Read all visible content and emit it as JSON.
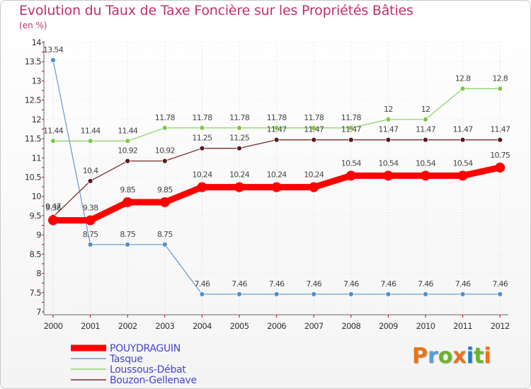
{
  "header": {
    "title": "Evolution du Taux de Taxe Foncière sur les Propriétés Bâties",
    "unit": "(en %)"
  },
  "logo": {
    "letters": [
      "P",
      "r",
      "o",
      "x",
      "i",
      "t",
      "i"
    ],
    "colors": [
      "#e8731b",
      "#5b9bd5",
      "#6ab42d",
      "#e8731b",
      "#1b7fc4",
      "#6ab42d",
      "#e8731b"
    ]
  },
  "chart_data": {
    "type": "line",
    "title": "Evolution du Taux de Taxe Foncière sur les Propriétés Bâties",
    "ylabel": "(en %)",
    "xlabel": "",
    "x": [
      "2000",
      "2001",
      "2002",
      "2003",
      "2004",
      "2005",
      "2006",
      "2007",
      "2008",
      "2009",
      "2010",
      "2011",
      "2012"
    ],
    "ylim": [
      7,
      14
    ],
    "yticks": [
      "7",
      "7.5",
      "8",
      "8.5",
      "9",
      "9.5",
      "10",
      "10.5",
      "11",
      "11.5",
      "12",
      "12.5",
      "13",
      "13.5",
      "14"
    ],
    "legend_position": "bottom-left",
    "series": [
      {
        "name": "POUYDRAGUIN",
        "color": "#ff0000",
        "values": [
          9.38,
          9.38,
          9.85,
          9.85,
          10.24,
          10.24,
          10.24,
          10.24,
          10.54,
          10.54,
          10.54,
          10.54,
          10.75
        ],
        "labels": [
          "9.38",
          "9.38",
          "9.85",
          "9.85",
          "10.24",
          "10.24",
          "10.24",
          "10.24",
          "10.54",
          "10.54",
          "10.54",
          "10.54",
          "10.75"
        ]
      },
      {
        "name": "Tasque",
        "color": "#6b9fd4",
        "values": [
          13.54,
          8.75,
          8.75,
          8.75,
          7.46,
          7.46,
          7.46,
          7.46,
          7.46,
          7.46,
          7.46,
          7.46,
          7.46
        ],
        "labels": [
          "13.54",
          "8.75",
          "8.75",
          "8.75",
          "7.46",
          "7.46",
          "7.46",
          "7.46",
          "7.46",
          "7.46",
          "7.46",
          "7.46",
          "7.46"
        ]
      },
      {
        "name": "Loussous-Débat",
        "color": "#8fd46a",
        "values": [
          11.44,
          11.44,
          11.44,
          11.78,
          11.78,
          11.78,
          11.78,
          11.78,
          11.78,
          12,
          12,
          12.8,
          12.8
        ],
        "labels": [
          "11.44",
          "11.44",
          "11.44",
          "11.78",
          "11.78",
          "11.78",
          "11.78",
          "11.78",
          "11.78",
          "12",
          "12",
          "12.8",
          "12.8"
        ]
      },
      {
        "name": "Bouzon-Gellenave",
        "color": "#7a2a2a",
        "values": [
          9.47,
          10.4,
          10.92,
          10.92,
          11.25,
          11.25,
          11.47,
          11.47,
          11.47,
          11.47,
          11.47,
          11.47,
          11.47
        ],
        "labels": [
          "9.47",
          "10.4",
          "10.92",
          "10.92",
          "11.25",
          "11.25",
          "11.47",
          "11.47",
          "11.47",
          "11.47",
          "11.47",
          "11.47",
          "11.47"
        ]
      }
    ]
  }
}
